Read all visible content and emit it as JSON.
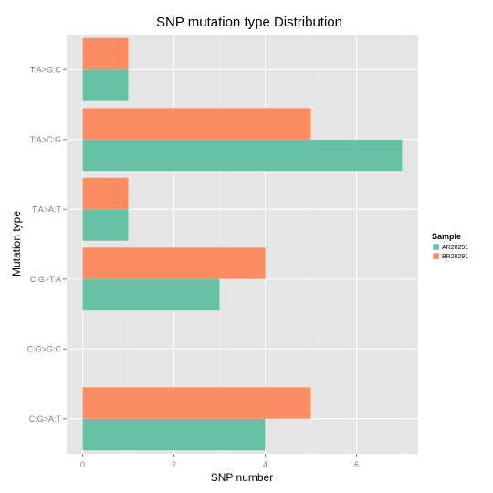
{
  "chart_data": {
    "type": "bar",
    "orientation": "horizontal",
    "title": "SNP mutation type Distribution",
    "xlabel": "SNP number",
    "ylabel": "Mutation type",
    "categories": [
      "C:G>A:T",
      "C:G>G:C",
      "C:G>T:A",
      "T:A>A:T",
      "T:A>C:G",
      "T:A>G:C"
    ],
    "series": [
      {
        "name": "AR20291",
        "color": "#66c2a5",
        "values": [
          4,
          0,
          3,
          1,
          7,
          1
        ]
      },
      {
        "name": "BR20291",
        "color": "#fc8d62",
        "values": [
          5,
          0,
          4,
          1,
          5,
          1
        ]
      }
    ],
    "x_ticks": [
      0,
      2,
      4,
      6
    ],
    "xlim": [
      -0.35,
      7.35
    ],
    "grid": true,
    "legend": {
      "title": "Sample",
      "position": "right"
    }
  }
}
